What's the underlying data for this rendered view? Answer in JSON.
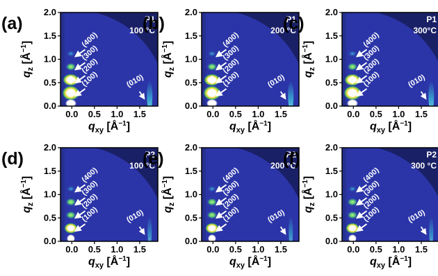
{
  "figure": {
    "panels": [
      {
        "label": "(a)",
        "sample": "P1",
        "temperature": "100 °C",
        "cmap": "bright"
      },
      {
        "label": "(b)",
        "sample": "P1",
        "temperature": "200 °C",
        "cmap": "bright"
      },
      {
        "label": "(c)",
        "sample": "P1",
        "temperature": "300°C",
        "cmap": "bright"
      },
      {
        "label": "(d)",
        "sample": "P2",
        "temperature": "100 °C",
        "cmap": "dim"
      },
      {
        "label": "(e)",
        "sample": "P2",
        "temperature": "200 °C",
        "cmap": "dim"
      },
      {
        "label": "(f)",
        "sample": "P2",
        "temperature": "300 °C",
        "cmap": "dim"
      }
    ],
    "x_axis": {
      "var": "q",
      "sub": "xy",
      "unit": " [Å",
      "sup": "−1",
      "close": "]",
      "ticks": [
        "0.0",
        "0.5",
        "1.0",
        "1.5"
      ],
      "range": [
        -0.25,
        1.9
      ]
    },
    "y_axis": {
      "var": "q",
      "sub": "z",
      "unit": " [Å",
      "sup": "−1",
      "close": "]",
      "ticks": [
        "0.0",
        "0.5",
        "1.0",
        "1.5",
        "2.0"
      ],
      "range": [
        0,
        2.0
      ]
    },
    "peaks": {
      "lamellar": [
        {
          "label": "(100)",
          "q": 0.28
        },
        {
          "label": "(200)",
          "q": 0.56
        },
        {
          "label": "(300)",
          "q": 0.84
        },
        {
          "label": "(400)",
          "q": 1.12
        }
      ],
      "pi_stacking": {
        "label": "(010)",
        "q": 1.72
      }
    },
    "colors": {
      "background": "#2b35a8",
      "arc": "#1a2066",
      "hot": "#ffffff",
      "warm": "#6fd15a",
      "cool": "#2fb0d8"
    }
  }
}
